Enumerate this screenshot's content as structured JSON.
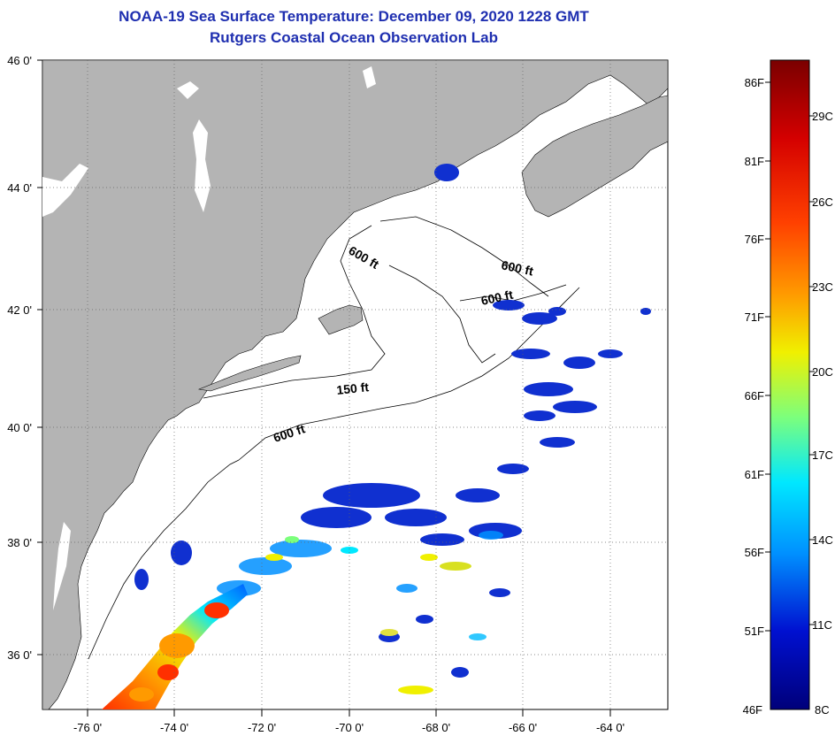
{
  "title": "NOAA-19 Sea Surface Temperature:  December 09, 2020 1228 GMT",
  "subtitle": "Rutgers Coastal Ocean Observation Lab",
  "map": {
    "lat_ticks": [
      "46 0'",
      "44 0'",
      "42 0'",
      "40 0'",
      "38 0'",
      "36 0'"
    ],
    "lon_ticks": [
      "-76 0'",
      "-74 0'",
      "-72 0'",
      "-70 0'",
      "-68 0'",
      "-66 0'",
      "-64 0'"
    ],
    "lat_range": [
      35,
      46
    ],
    "lon_range": [
      -77,
      -63
    ],
    "contour_labels": [
      "600 ft",
      "600 ft",
      "600 ft",
      "150 ft",
      "600 ft"
    ],
    "colors": {
      "land": "#b4b4b4",
      "ocean": "#ffffff",
      "contour": "#000000",
      "grid": "#666666"
    }
  },
  "colorbar": {
    "fahrenheit": [
      "86F",
      "81F",
      "76F",
      "71F",
      "66F",
      "61F",
      "56F",
      "51F",
      "46F"
    ],
    "celsius": [
      "29C",
      "26C",
      "23C",
      "20C",
      "17C",
      "14C",
      "11C",
      "8C"
    ],
    "stops": [
      "#7a0000",
      "#d40000",
      "#ff4000",
      "#ff9a00",
      "#f0f000",
      "#7cff7c",
      "#00e8ff",
      "#0090ff",
      "#0010d0",
      "#00007a"
    ]
  }
}
